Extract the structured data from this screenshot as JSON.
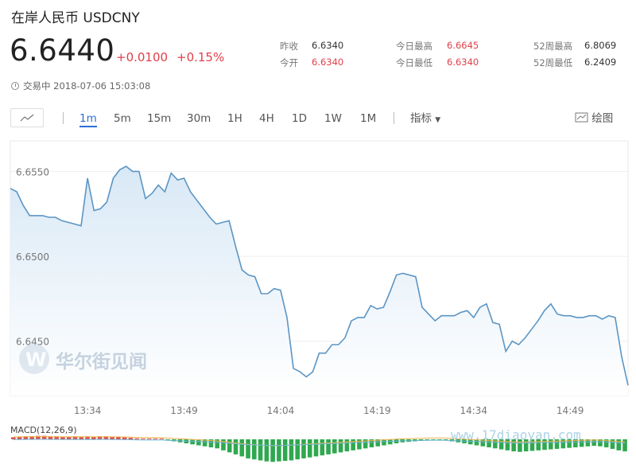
{
  "header": {
    "title": "在岸人民币 USDCNY",
    "price": "6.6440",
    "change": "+0.0100",
    "change_pct": "+0.15%",
    "status": "交易中 2018-07-06 15:03:08"
  },
  "stats": [
    {
      "label": "昨收",
      "value": "6.6340",
      "color": "normal"
    },
    {
      "label": "今开",
      "value": "6.6340",
      "color": "red"
    },
    {
      "label": "今日最高",
      "value": "6.6645",
      "color": "red"
    },
    {
      "label": "今日最低",
      "value": "6.6340",
      "color": "red"
    },
    {
      "label": "52周最高",
      "value": "6.8069",
      "color": "normal"
    },
    {
      "label": "52周最低",
      "value": "6.2409",
      "color": "normal"
    }
  ],
  "toolbar": {
    "intervals": [
      "1m",
      "5m",
      "15m",
      "30m",
      "1H",
      "4H",
      "1D",
      "1W",
      "1M"
    ],
    "active": "1m",
    "indicator_label": "指标",
    "draw_label": "绘图"
  },
  "colors": {
    "accent": "#2a6fd6",
    "up": "#e0404a",
    "line": "#5b95c4",
    "macd_up": "#d9534f",
    "macd_down": "#2fa84f"
  },
  "watermark_text": "华尔街见闻",
  "site_watermark": "www.17diaoyan.com",
  "macd_label": "MACD(12,26,9)",
  "chart_data": {
    "type": "area",
    "ylim": [
      6.6418,
      6.6568
    ],
    "yticks": [
      6.645,
      6.65,
      6.655
    ],
    "ytick_labels": [
      "6.6450",
      "6.6500",
      "6.6550"
    ],
    "xticks": [
      "13:34",
      "13:49",
      "14:04",
      "14:19",
      "14:34",
      "14:49"
    ],
    "xtick_index": [
      12,
      27,
      42,
      57,
      72,
      87
    ],
    "grid": true,
    "series": [
      {
        "values": [
          6.654,
          6.6538,
          6.653,
          6.6524,
          6.6524,
          6.6524,
          6.6523,
          6.6523,
          6.6521,
          6.652,
          6.6519,
          6.6518,
          6.6546,
          6.6527,
          6.6528,
          6.6532,
          6.6546,
          6.6551,
          6.6553,
          6.655,
          6.655,
          6.6534,
          6.6537,
          6.6542,
          6.6538,
          6.6549,
          6.6545,
          6.6546,
          6.6538,
          6.6533,
          6.6528,
          6.6523,
          6.6519,
          6.652,
          6.6521,
          6.6506,
          6.6492,
          6.6489,
          6.6488,
          6.6478,
          6.6478,
          6.6481,
          6.648,
          6.6464,
          6.6434,
          6.6432,
          6.6429,
          6.6432,
          6.6443,
          6.6443,
          6.6448,
          6.6448,
          6.6452,
          6.6462,
          6.6464,
          6.6464,
          6.6471,
          6.6469,
          6.647,
          6.6479,
          6.6489,
          6.649,
          6.6489,
          6.6488,
          6.647,
          6.6466,
          6.6462,
          6.6465,
          6.6465,
          6.6465,
          6.6467,
          6.6468,
          6.6464,
          6.647,
          6.6472,
          6.6461,
          6.646,
          6.6444,
          6.645,
          6.6448,
          6.6452,
          6.6457,
          6.6462,
          6.6468,
          6.6472,
          6.6466,
          6.6465,
          6.6465,
          6.6464,
          6.6464,
          6.6465,
          6.6465,
          6.6463,
          6.6465,
          6.6464,
          6.6441,
          6.6424
        ]
      }
    ],
    "macd": {
      "label": "MACD(12,26,9)",
      "values": [
        0.4,
        0.5,
        0.6,
        0.6,
        0.7,
        0.7,
        0.6,
        0.6,
        0.5,
        0.5,
        0.6,
        0.5,
        0.6,
        0.5,
        0.6,
        0.6,
        0.5,
        0.5,
        0.4,
        0.3,
        0.2,
        0.1,
        0.05,
        0.1,
        0.05,
        -0.2,
        -0.4,
        -0.6,
        -0.8,
        -1.0,
        -1.2,
        -1.4,
        -1.6,
        -1.8,
        -2.2,
        -2.6,
        -3.0,
        -3.4,
        -3.8,
        -4.0,
        -4.2,
        -4.4,
        -4.5,
        -4.4,
        -4.3,
        -4.2,
        -4.0,
        -3.8,
        -3.6,
        -3.4,
        -3.2,
        -3.0,
        -2.8,
        -2.6,
        -2.4,
        -2.2,
        -2.0,
        -1.8,
        -1.6,
        -1.4,
        -1.2,
        -1.0,
        -0.8,
        -0.6,
        -0.5,
        -0.4,
        -0.3,
        -0.2,
        -0.1,
        -0.1,
        -0.2,
        -0.4,
        -0.6,
        -0.8,
        -1.0,
        -1.2,
        -1.4,
        -1.6,
        -1.8,
        -2.0,
        -2.2,
        -2.4,
        -2.5,
        -2.4,
        -2.3,
        -2.2,
        -2.1,
        -2.0,
        -1.9,
        -1.8,
        -1.7,
        -1.6,
        -1.5,
        -1.4,
        -1.3,
        -1.4,
        -1.6,
        -1.9,
        -2.2,
        -2.4
      ]
    }
  }
}
